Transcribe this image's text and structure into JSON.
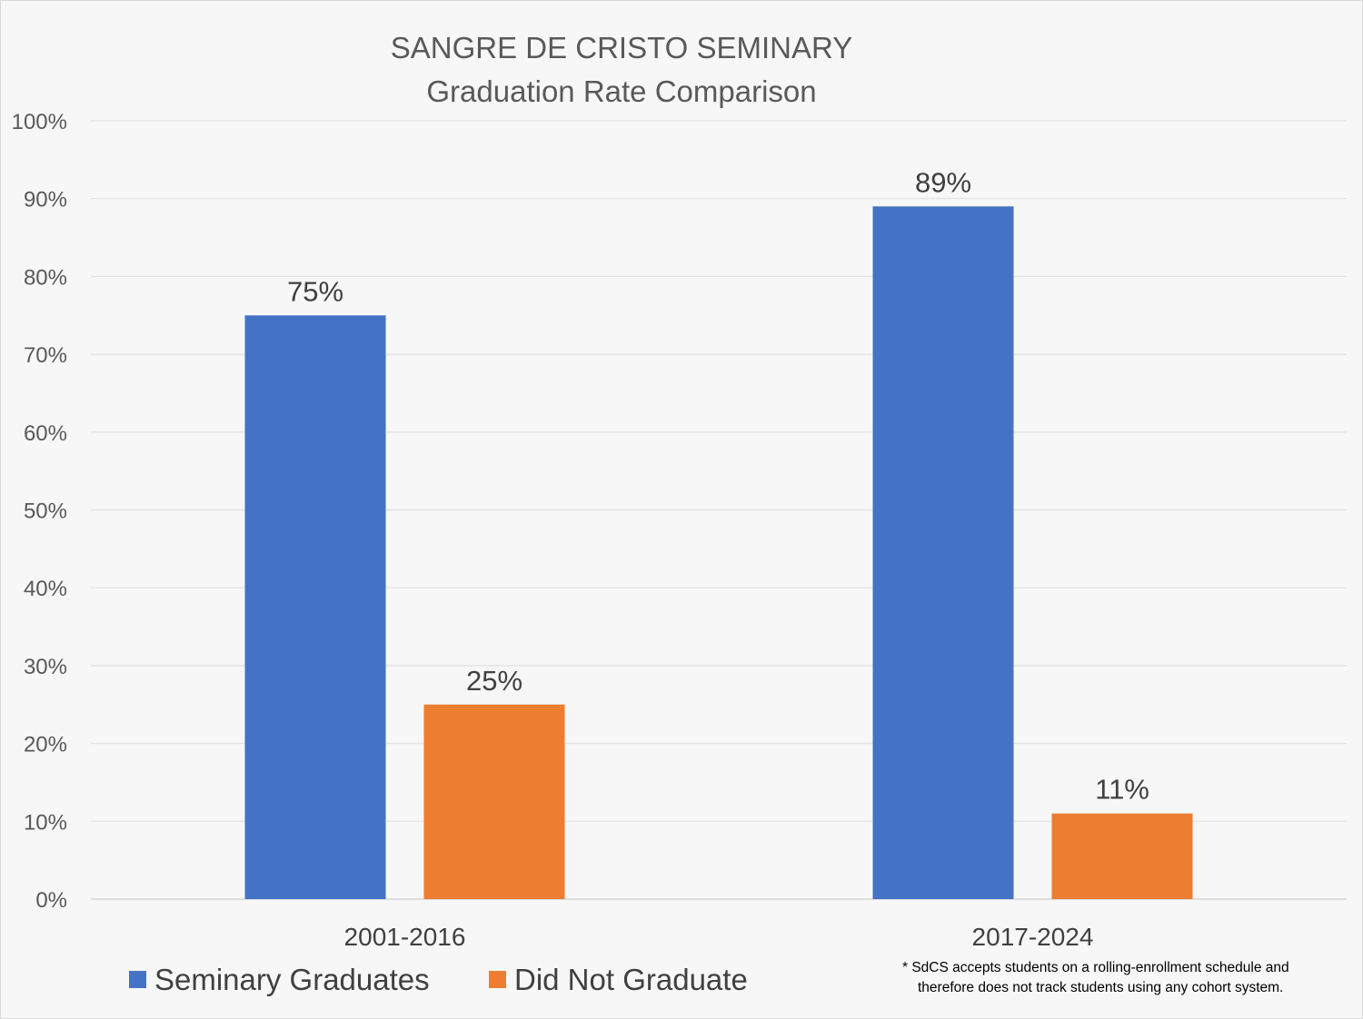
{
  "chart_data": {
    "type": "bar",
    "title": "SANGRE DE CRISTO SEMINARY",
    "subtitle": "Graduation Rate Comparison",
    "categories": [
      "2001-2016",
      "2017-2024"
    ],
    "series": [
      {
        "name": "Seminary Graduates",
        "color": "#4472c4",
        "values": [
          75,
          89
        ],
        "labels": [
          "75%",
          "89%"
        ]
      },
      {
        "name": "Did Not Graduate",
        "color": "#ed7d31",
        "values": [
          25,
          11
        ],
        "labels": [
          "25%",
          "11%"
        ]
      }
    ],
    "ylim": [
      0,
      100
    ],
    "yticks": [
      0,
      10,
      20,
      30,
      40,
      50,
      60,
      70,
      80,
      90,
      100
    ],
    "ytick_labels": [
      "0%",
      "10%",
      "20%",
      "30%",
      "40%",
      "50%",
      "60%",
      "70%",
      "80%",
      "90%",
      "100%"
    ],
    "xlabel": "",
    "ylabel": "",
    "grid": true,
    "legend_position": "bottom-left"
  },
  "footnote": {
    "line1": "* SdCS accepts students on a rolling-enrollment schedule and",
    "line2": "therefore  does not track students using any cohort system."
  }
}
